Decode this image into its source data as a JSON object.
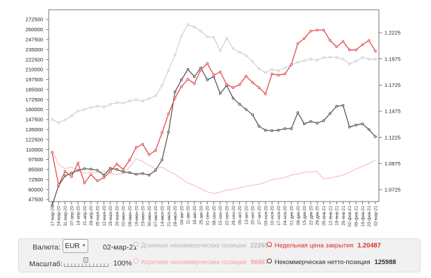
{
  "controls": {
    "currency_label": "Валюта:",
    "currency_value": "EUR",
    "date": "02-мар-21",
    "scale_label": "Масштаб:",
    "scale_value": "100%",
    "slider_percent": 48
  },
  "legend": [
    {
      "id": "long",
      "label": "Длинные некоммерческие позиции",
      "value": "222655",
      "color": "#b9b9b9"
    },
    {
      "id": "close",
      "label": "Недельная цена закрытия",
      "value": "1.20487",
      "color": "#e02e2e"
    },
    {
      "id": "short",
      "label": "Короткие некоммерческие позиции",
      "value": "96667",
      "color": "#f2a6a6"
    },
    {
      "id": "net",
      "label": "Некоммерческая нетто-позиция",
      "value": "125988",
      "color": "#2e2e2e"
    }
  ],
  "chart_data": {
    "type": "line",
    "title": "",
    "grid": false,
    "x": [
      "17-мар-20",
      "24-мар-20",
      "31-мар-20",
      "07-апр-20",
      "14-апр-20",
      "21-апр-20",
      "28-апр-20",
      "05-мая-20",
      "12-мая-20",
      "19-мая-20",
      "26-мая-20",
      "02-июн-20",
      "09-июн-20",
      "16-июн-20",
      "23-июн-20",
      "30-июн-20",
      "07-июл-20",
      "14-июл-20",
      "21-июл-20",
      "28-июл-20",
      "04-авг-20",
      "11-авг-20",
      "18-авг-20",
      "25-авг-20",
      "01-сен-20",
      "08-сен-20",
      "15-сен-20",
      "22-сен-20",
      "29-сен-20",
      "06-окт-20",
      "13-окт-20",
      "20-окт-20",
      "27-окт-20",
      "03-ноя-20",
      "10-ноя-20",
      "17-ноя-20",
      "24-ноя-20",
      "01-дек-20",
      "08-дек-20",
      "15-дек-20",
      "22-дек-20",
      "29-дек-20",
      "05-янв-21",
      "12-янв-21",
      "19-янв-21",
      "26-янв-21",
      "02-фев-21",
      "09-фев-21",
      "16-фев-21",
      "23-фев-21",
      "02-мар-21"
    ],
    "left_axis": {
      "min": 47500,
      "max": 272500,
      "step": 12500,
      "ticks": [
        "47500",
        "60000",
        "72500",
        "85000",
        "97500",
        "110000",
        "122500",
        "135000",
        "147500",
        "160000",
        "172500",
        "185000",
        "197500",
        "210000",
        "222500",
        "235000",
        "247500",
        "260000",
        "272500"
      ]
    },
    "right_axis": {
      "min": 1.0725,
      "max": 1.2225,
      "step": 0.025,
      "ticks": [
        "1.0725",
        "1.0975",
        "1.1225",
        "1.1475",
        "1.1725",
        "1.1975",
        "1.2225"
      ]
    },
    "series": [
      {
        "name": "Длинные некоммерческие позиции",
        "axis": "left",
        "color": "#c9c9c9",
        "markers": true,
        "width": 1,
        "values": [
          147500,
          143500,
          147000,
          152000,
          158000,
          160000,
          162500,
          164000,
          163000,
          166500,
          168500,
          168000,
          170500,
          172500,
          170500,
          173500,
          177000,
          190000,
          209000,
          228000,
          252000,
          266000,
          263000,
          258000,
          251000,
          250000,
          233500,
          249000,
          236000,
          231500,
          227500,
          220000,
          211000,
          206000,
          210000,
          208500,
          212000,
          216000,
          219000,
          221000,
          223000,
          221500,
          225000,
          225500,
          225000,
          223000,
          217000,
          220500,
          225000,
          223000,
          222655
        ]
      },
      {
        "name": "Короткие некоммерческие позиции",
        "axis": "left",
        "color": "#f7bdbd",
        "markers": false,
        "width": 1.1,
        "values": [
          109000,
          91000,
          86000,
          88000,
          84000,
          80000,
          82000,
          80500,
          83000,
          80000,
          78500,
          80000,
          88000,
          98500,
          95000,
          90000,
          86000,
          88000,
          83000,
          79000,
          73500,
          68000,
          65000,
          61000,
          57000,
          55000,
          56500,
          59500,
          60000,
          62000,
          64000,
          65500,
          66500,
          69000,
          72500,
          73500,
          75000,
          78000,
          79500,
          81500,
          82000,
          82500,
          73000,
          74500,
          76000,
          78000,
          81500,
          85500,
          89000,
          92500,
          96667
        ]
      },
      {
        "name": "Некоммерческая нетто-позиция",
        "axis": "left",
        "color": "#414141",
        "markers": true,
        "width": 1.1,
        "values": [
          40000,
          65000,
          77000,
          80500,
          84000,
          86000,
          85500,
          84000,
          78000,
          86500,
          85000,
          82000,
          81000,
          79000,
          80000,
          78000,
          84000,
          97000,
          131800,
          182000,
          197000,
          210000,
          201000,
          212000,
          197000,
          201000,
          180000,
          190000,
          174000,
          166500,
          160000,
          153500,
          139000,
          134000,
          133500,
          134000,
          136000,
          136000,
          156000,
          142000,
          145000,
          143000,
          146000,
          155000,
          164000,
          165000,
          138000,
          140500,
          142000,
          135000,
          125988
        ]
      },
      {
        "name": "Недельная цена закрытия",
        "axis": "right",
        "color": "#e33d3d",
        "markers": true,
        "width": 1.2,
        "values": [
          1.108,
          1.077,
          1.09,
          1.085,
          1.098,
          1.079,
          1.087,
          1.081,
          1.084,
          1.09,
          1.097,
          1.092,
          1.101,
          1.113,
          1.116,
          1.106,
          1.11,
          1.127,
          1.145,
          1.16,
          1.171,
          1.178,
          1.174,
          1.187,
          1.193,
          1.182,
          1.185,
          1.173,
          1.17,
          1.173,
          1.181,
          1.175,
          1.17,
          1.164,
          1.183,
          1.182,
          1.183,
          1.192,
          1.212,
          1.217,
          1.224,
          1.225,
          1.225,
          1.215,
          1.209,
          1.214,
          1.206,
          1.206,
          1.211,
          1.215,
          1.20487
        ]
      }
    ]
  }
}
